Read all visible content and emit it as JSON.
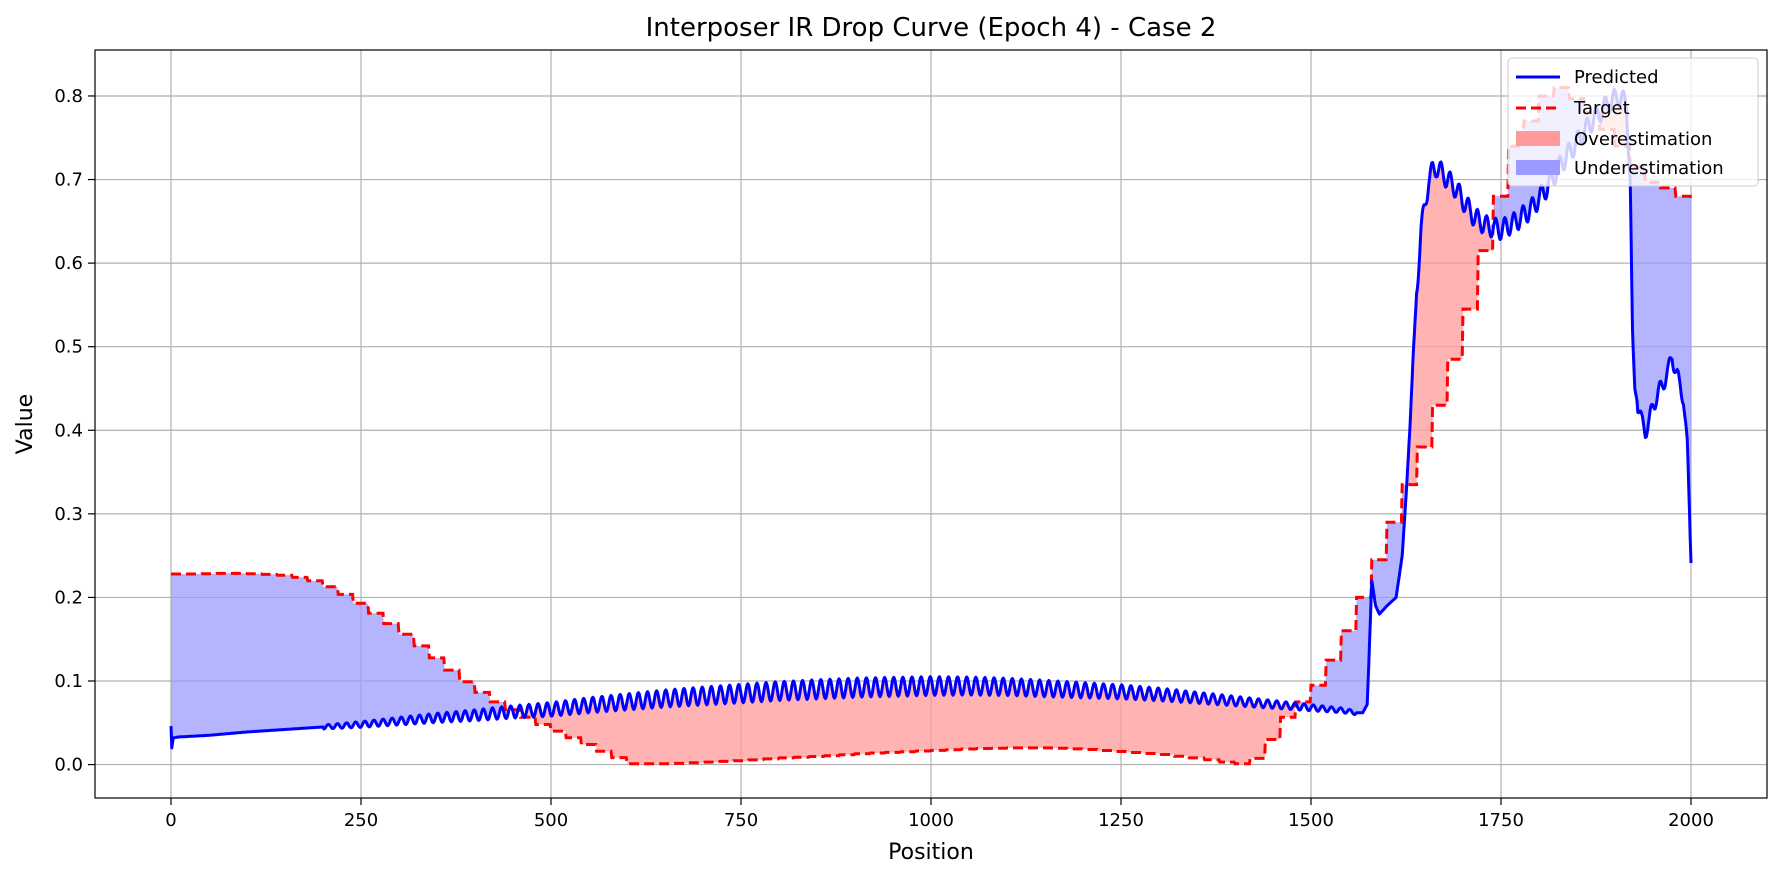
{
  "chart_data": {
    "type": "line",
    "title": "Interposer IR Drop Curve (Epoch 4) - Case 2",
    "xlabel": "Position",
    "ylabel": "Value",
    "xlim": [
      -100,
      2100
    ],
    "ylim": [
      -0.04,
      0.855
    ],
    "xticks": [
      0,
      250,
      500,
      750,
      1000,
      1250,
      1500,
      1750,
      2000
    ],
    "yticks": [
      0.0,
      0.1,
      0.2,
      0.3,
      0.4,
      0.5,
      0.6,
      0.7,
      0.8
    ],
    "grid": true,
    "legend_position": "top-right",
    "series": [
      {
        "name": "Predicted",
        "style": "solid",
        "color": "#0000ff",
        "x": [
          0,
          1,
          3,
          10,
          50,
          100,
          150,
          200,
          250,
          300,
          350,
          400,
          450,
          500,
          550,
          600,
          650,
          700,
          750,
          800,
          850,
          900,
          950,
          1000,
          1050,
          1100,
          1150,
          1200,
          1250,
          1300,
          1350,
          1400,
          1450,
          1500,
          1540,
          1560,
          1568,
          1574,
          1576,
          1580,
          1585,
          1590,
          1600,
          1612,
          1620,
          1625,
          1630,
          1635,
          1640,
          1645,
          1650,
          1655,
          1660,
          1665,
          1670,
          1680,
          1690,
          1700,
          1715,
          1730,
          1750,
          1770,
          1790,
          1810,
          1830,
          1850,
          1870,
          1890,
          1905,
          1915,
          1920,
          1923,
          1926,
          1930,
          1935,
          1940,
          1945,
          1950,
          1960,
          1970,
          1975,
          1980,
          1990,
          1995,
          2000
        ],
        "y": [
          0.046,
          0.02,
          0.032,
          0.033,
          0.035,
          0.039,
          0.042,
          0.045,
          0.048,
          0.052,
          0.056,
          0.059,
          0.063,
          0.066,
          0.071,
          0.075,
          0.079,
          0.082,
          0.085,
          0.088,
          0.09,
          0.092,
          0.093,
          0.094,
          0.094,
          0.093,
          0.091,
          0.089,
          0.087,
          0.084,
          0.08,
          0.076,
          0.072,
          0.068,
          0.065,
          0.062,
          0.062,
          0.072,
          0.12,
          0.22,
          0.19,
          0.18,
          0.19,
          0.2,
          0.25,
          0.32,
          0.4,
          0.5,
          0.58,
          0.64,
          0.67,
          0.7,
          0.71,
          0.715,
          0.71,
          0.7,
          0.69,
          0.675,
          0.655,
          0.645,
          0.64,
          0.65,
          0.665,
          0.69,
          0.72,
          0.745,
          0.77,
          0.79,
          0.8,
          0.79,
          0.7,
          0.52,
          0.45,
          0.43,
          0.41,
          0.4,
          0.41,
          0.43,
          0.45,
          0.47,
          0.49,
          0.47,
          0.44,
          0.38,
          0.25
        ]
      },
      {
        "name": "Target",
        "style": "dashed",
        "color": "#ff0000",
        "x": [
          0,
          30,
          70,
          110,
          150,
          180,
          210,
          240,
          270,
          300,
          330,
          360,
          390,
          420,
          450,
          480,
          510,
          540,
          570,
          600,
          650,
          700,
          750,
          800,
          850,
          900,
          950,
          1000,
          1050,
          1100,
          1150,
          1200,
          1250,
          1300,
          1350,
          1380,
          1400,
          1415,
          1430,
          1450,
          1465,
          1480,
          1500,
          1520,
          1540,
          1560,
          1580,
          1600,
          1620,
          1640,
          1660,
          1680,
          1700,
          1720,
          1740,
          1760,
          1780,
          1800,
          1810,
          1830,
          1860,
          1890,
          1910,
          1930,
          1960,
          1980,
          2000
        ],
        "y": [
          0.228,
          0.228,
          0.229,
          0.228,
          0.226,
          0.22,
          0.209,
          0.193,
          0.175,
          0.156,
          0.135,
          0.113,
          0.092,
          0.075,
          0.061,
          0.048,
          0.036,
          0.024,
          0.012,
          0.001,
          0.001,
          0.003,
          0.005,
          0.008,
          0.01,
          0.013,
          0.015,
          0.017,
          0.019,
          0.02,
          0.02,
          0.018,
          0.015,
          0.012,
          0.007,
          0.003,
          0.001,
          0.001,
          0.02,
          0.04,
          0.065,
          0.075,
          0.095,
          0.125,
          0.16,
          0.2,
          0.245,
          0.29,
          0.335,
          0.38,
          0.43,
          0.485,
          0.545,
          0.615,
          0.68,
          0.74,
          0.77,
          0.8,
          0.815,
          0.805,
          0.78,
          0.75,
          0.73,
          0.7,
          0.69,
          0.68,
          0.675
        ]
      }
    ],
    "fills": [
      {
        "name": "Overestimation",
        "color": "#ff9a9a"
      },
      {
        "name": "Underestimation",
        "color": "#9b9bff"
      }
    ]
  }
}
